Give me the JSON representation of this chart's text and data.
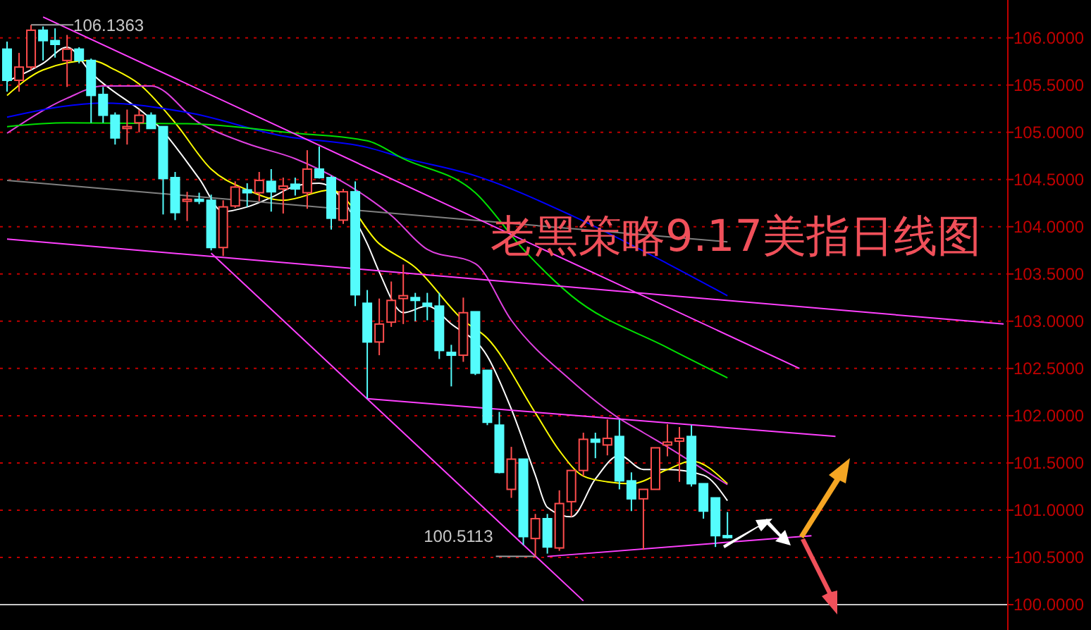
{
  "chart_data": {
    "type": "candlestick",
    "title": "老黑策略9.17美指日线图",
    "categories": [
      null,
      null,
      null,
      null,
      null,
      null,
      null,
      null,
      null,
      null,
      null,
      null,
      null,
      null,
      null,
      null,
      null,
      null,
      null,
      null,
      null,
      null,
      null,
      null,
      null,
      null,
      null,
      null,
      null,
      null,
      null,
      null,
      null,
      null,
      null,
      null,
      null,
      null,
      null,
      null,
      null,
      null,
      null,
      null,
      null,
      null,
      null,
      null,
      null,
      null,
      null,
      null,
      null,
      null,
      null,
      null,
      null,
      null,
      null,
      null,
      null,
      null,
      null,
      null,
      null,
      null,
      null,
      null,
      null,
      null,
      null,
      null,
      null,
      null,
      null,
      null,
      null,
      null,
      null,
      null,
      null,
      null,
      null,
      null
    ],
    "colors": [
      "#54fcfc",
      "#ff4d4d",
      "#ff4d4d",
      "#54fcfc",
      "#54fcfc",
      "#ff4d4d",
      "#54fcfc",
      "#54fcfc",
      "#54fcfc",
      "#54fcfc",
      "#ff4d4d",
      "#ff4d4d",
      "#54fcfc",
      "#54fcfc",
      "#54fcfc",
      "#ff4d4d",
      "#54fcfc",
      "#54fcfc",
      "#ff4d4d",
      "#ff4d4d",
      "#54fcfc",
      "#ff4d4d",
      "#54fcfc",
      "#ff4d4d",
      "#54fcfc",
      "#ff4d4d",
      "#54fcfc",
      "#54fcfc",
      "#ff4d4d",
      "#54fcfc",
      "#54fcfc",
      "#ff4d4d",
      "#ff4d4d",
      "#ff4d4d",
      "#54fcfc",
      "#54fcfc",
      "#54fcfc",
      "#54fcfc",
      "#ff4d4d",
      "#54fcfc",
      "#54fcfc",
      "#54fcfc",
      "#ff4d4d",
      "#54fcfc",
      "#ff4d4d",
      "#54fcfc",
      "#ff4d4d",
      "#ff4d4d",
      "#ff4d4d",
      "#54fcfc",
      "#ff4d4d",
      "#54fcfc",
      "#54fcfc",
      "#ff4d4d",
      "#ff4d4d",
      "#ff4d4d",
      "#ff4d4d",
      "#54fcfc",
      "#54fcfc",
      "#54fcfc",
      "#54fcfc",
      null,
      null,
      null,
      null,
      null,
      null,
      null,
      null,
      null,
      null,
      null,
      null,
      null,
      null,
      null,
      null,
      null,
      null,
      null,
      null,
      null,
      null,
      null
    ],
    "ohlc": [
      [
        105.88,
        105.96,
        105.43,
        105.55
      ],
      [
        105.55,
        105.84,
        105.43,
        105.69
      ],
      [
        105.69,
        106.1363,
        105.66,
        106.08
      ],
      [
        106.08,
        106.12,
        105.76,
        105.97
      ],
      [
        105.97,
        106.1,
        105.79,
        105.93
      ],
      [
        105.76,
        106.03,
        105.48,
        105.88
      ],
      [
        105.88,
        105.9,
        105.73,
        105.76
      ],
      [
        105.76,
        105.78,
        105.1,
        105.39
      ],
      [
        105.4,
        105.48,
        105.1,
        105.18
      ],
      [
        105.18,
        105.21,
        104.87,
        104.94
      ],
      [
        105.04,
        105.24,
        104.87,
        105.06
      ],
      [
        105.1,
        105.24,
        105.0,
        105.18
      ],
      [
        105.18,
        105.21,
        105.04,
        105.04
      ],
      [
        105.06,
        105.06,
        104.13,
        104.51
      ],
      [
        104.52,
        104.58,
        104.07,
        104.15
      ],
      [
        104.27,
        104.37,
        104.06,
        104.29
      ],
      [
        104.29,
        104.36,
        104.24,
        104.27
      ],
      [
        104.28,
        104.34,
        103.75,
        103.78
      ],
      [
        103.78,
        104.28,
        103.69,
        104.21
      ],
      [
        104.22,
        104.48,
        104.2,
        104.42
      ],
      [
        104.39,
        104.46,
        104.21,
        104.36
      ],
      [
        104.36,
        104.58,
        104.27,
        104.49
      ],
      [
        104.48,
        104.61,
        104.16,
        104.37
      ],
      [
        104.4,
        104.52,
        104.14,
        104.43
      ],
      [
        104.45,
        104.52,
        104.33,
        104.4
      ],
      [
        104.36,
        104.81,
        104.19,
        104.61
      ],
      [
        104.61,
        104.85,
        104.51,
        104.52
      ],
      [
        104.52,
        104.54,
        103.97,
        104.09
      ],
      [
        104.07,
        104.4,
        104.03,
        104.37
      ],
      [
        104.37,
        104.48,
        103.16,
        103.28
      ],
      [
        103.19,
        103.33,
        102.18,
        102.78
      ],
      [
        102.78,
        103.24,
        102.64,
        102.97
      ],
      [
        102.99,
        103.42,
        102.94,
        103.22
      ],
      [
        103.24,
        103.6,
        102.97,
        103.27
      ],
      [
        103.25,
        103.3,
        103.0,
        103.22
      ],
      [
        103.19,
        103.3,
        103.01,
        103.16
      ],
      [
        103.16,
        103.3,
        102.6,
        102.69
      ],
      [
        102.67,
        102.75,
        102.31,
        102.64
      ],
      [
        102.64,
        103.25,
        102.57,
        103.09
      ],
      [
        103.1,
        103.1,
        102.43,
        102.45
      ],
      [
        102.48,
        102.48,
        101.9,
        101.93
      ],
      [
        101.9,
        102.04,
        101.39,
        101.4
      ],
      [
        101.22,
        101.67,
        101.13,
        101.54
      ],
      [
        101.54,
        101.54,
        100.63,
        100.72
      ],
      [
        100.7,
        100.96,
        100.5113,
        100.91
      ],
      [
        100.91,
        100.96,
        100.54,
        100.61
      ],
      [
        100.6,
        101.21,
        100.57,
        101.07
      ],
      [
        101.09,
        101.42,
        100.93,
        101.42
      ],
      [
        101.42,
        101.82,
        101.36,
        101.75
      ],
      [
        101.75,
        101.82,
        101.55,
        101.72
      ],
      [
        101.69,
        101.96,
        101.58,
        101.76
      ],
      [
        101.78,
        101.96,
        101.22,
        101.31
      ],
      [
        101.31,
        101.4,
        100.99,
        101.12
      ],
      [
        101.12,
        101.22,
        100.58,
        101.22
      ],
      [
        101.22,
        101.66,
        101.22,
        101.66
      ],
      [
        101.69,
        101.91,
        101.57,
        101.72
      ],
      [
        101.73,
        101.88,
        101.3,
        101.76
      ],
      [
        101.78,
        101.9,
        101.25,
        101.28
      ],
      [
        101.28,
        101.28,
        100.91,
        100.99
      ],
      [
        101.13,
        101.13,
        100.61,
        100.73
      ],
      [
        100.73,
        100.98,
        100.7,
        100.71
      ],
      null,
      null,
      null,
      null,
      null,
      null,
      null,
      null,
      null,
      null,
      null,
      null,
      null,
      null,
      null,
      null,
      null,
      null,
      null,
      null,
      null,
      null,
      null
    ],
    "series": [
      {
        "type": "line",
        "color": "#ffffff",
        "values": [
          105.54,
          null,
          null,
          105.73,
          null,
          105.9,
          null,
          105.63,
          null,
          null,
          null,
          null,
          null,
          105.01,
          null,
          null,
          104.51,
          null,
          104.16,
          null,
          104.21,
          null,
          104.31,
          null,
          104.43,
          null,
          104.46,
          null,
          null,
          null,
          103.82,
          103.52,
          null,
          103.09,
          null,
          103.16,
          null,
          102.97,
          null,
          null,
          102.63,
          null,
          102.07,
          null,
          101.37,
          101.03,
          null,
          100.93,
          null,
          101.33,
          null,
          101.58,
          null,
          101.43,
          null,
          101.43,
          null,
          null,
          101.37,
          null,
          101.1,
          null,
          null,
          null,
          null,
          null,
          null,
          null,
          null,
          null,
          null,
          null,
          null,
          null,
          null,
          null,
          null,
          null,
          null,
          null,
          null,
          null,
          null,
          null
        ]
      },
      {
        "type": "line",
        "color": "#ffff00",
        "values": [
          105.39,
          null,
          null,
          105.66,
          null,
          null,
          null,
          105.76,
          null,
          105.66,
          null,
          105.51,
          null,
          null,
          105.1,
          null,
          null,
          104.61,
          null,
          null,
          104.39,
          null,
          null,
          104.28,
          null,
          null,
          null,
          104.39,
          null,
          null,
          null,
          103.82,
          null,
          null,
          103.57,
          null,
          null,
          null,
          103.01,
          null,
          102.82,
          null,
          null,
          null,
          102.03,
          null,
          101.63,
          null,
          101.36,
          null,
          101.3,
          null,
          101.28,
          null,
          null,
          101.43,
          null,
          101.52,
          null,
          null,
          101.28,
          null,
          null,
          null,
          null,
          null,
          null,
          null,
          null,
          null,
          null,
          null,
          null,
          null,
          null,
          null,
          null,
          null,
          null,
          null,
          null,
          null,
          null,
          null
        ]
      },
      {
        "type": "line",
        "color": "#e040e0",
        "values": [
          104.99,
          null,
          null,
          null,
          null,
          105.36,
          null,
          null,
          105.49,
          null,
          null,
          null,
          105.49,
          null,
          null,
          null,
          105.1,
          null,
          null,
          null,
          104.88,
          null,
          null,
          null,
          104.72,
          null,
          null,
          null,
          null,
          null,
          104.31,
          null,
          104.12,
          null,
          null,
          103.76,
          null,
          null,
          null,
          103.61,
          null,
          null,
          103.01,
          null,
          null,
          null,
          null,
          102.37,
          null,
          null,
          null,
          101.97,
          null,
          101.82,
          null,
          101.67,
          null,
          null,
          101.43,
          null,
          101.27,
          null,
          null,
          null,
          null,
          null,
          null,
          null,
          null,
          null,
          null,
          null,
          null,
          null,
          null,
          null,
          null,
          null,
          null,
          null,
          null,
          null,
          null,
          null
        ]
      },
      {
        "type": "line",
        "color": "#0000ff",
        "values": [
          105.16,
          null,
          null,
          null,
          null,
          105.28,
          null,
          null,
          105.31,
          null,
          null,
          null,
          null,
          null,
          null,
          105.21,
          null,
          null,
          null,
          null,
          null,
          null,
          null,
          104.96,
          null,
          null,
          null,
          null,
          null,
          null,
          104.84,
          null,
          null,
          104.73,
          null,
          null,
          null,
          null,
          null,
          104.54,
          null,
          null,
          null,
          null,
          null,
          null,
          null,
          104.12,
          null,
          null,
          null,
          null,
          null,
          null,
          null,
          103.61,
          null,
          null,
          null,
          null,
          103.27,
          null,
          null,
          null,
          null,
          null,
          null,
          null,
          null,
          null,
          null,
          null,
          null,
          null,
          null,
          null,
          null,
          null,
          null,
          null,
          null,
          null,
          null,
          null
        ]
      },
      {
        "type": "line",
        "color": "#00e000",
        "values": [
          105.06,
          null,
          null,
          null,
          null,
          105.1,
          null,
          null,
          null,
          null,
          null,
          null,
          null,
          null,
          null,
          105.09,
          null,
          null,
          null,
          null,
          null,
          null,
          null,
          null,
          104.99,
          null,
          null,
          null,
          null,
          null,
          104.91,
          null,
          null,
          104.72,
          null,
          null,
          null,
          null,
          null,
          104.36,
          null,
          null,
          null,
          103.76,
          null,
          null,
          null,
          103.27,
          null,
          null,
          null,
          null,
          null,
          null,
          null,
          102.72,
          null,
          null,
          null,
          null,
          102.4,
          null,
          null,
          null,
          null,
          null,
          null,
          null,
          null,
          null,
          null,
          null,
          null,
          null,
          null,
          null,
          null,
          null,
          null,
          null,
          null,
          null,
          null,
          null
        ]
      },
      {
        "type": "line",
        "color": "#808080",
        "values": [
          104.49,
          null,
          null,
          null,
          null,
          null,
          null,
          null,
          null,
          null,
          null,
          null,
          null,
          null,
          null,
          null,
          null,
          null,
          null,
          null,
          null,
          null,
          null,
          null,
          null,
          null,
          null,
          null,
          null,
          null,
          null,
          null,
          null,
          null,
          null,
          null,
          null,
          null,
          null,
          null,
          null,
          null,
          null,
          null,
          null,
          null,
          null,
          null,
          null,
          null,
          null,
          null,
          null,
          null,
          null,
          null,
          null,
          null,
          null,
          null,
          103.84,
          null,
          null,
          null,
          null,
          null,
          null,
          null,
          null,
          null,
          null,
          null,
          null,
          null,
          null,
          null,
          null,
          null,
          null,
          null,
          null,
          null,
          null,
          null
        ]
      },
      {
        "type": "line",
        "color": "#ff40ff",
        "values": [
          null,
          null,
          null,
          106.22,
          null,
          null,
          null,
          null,
          null,
          null,
          null,
          null,
          null,
          null,
          null,
          null,
          null,
          null,
          null,
          null,
          null,
          null,
          null,
          null,
          null,
          null,
          null,
          null,
          null,
          null,
          null,
          null,
          null,
          null,
          null,
          null,
          null,
          null,
          null,
          null,
          null,
          null,
          null,
          null,
          null,
          null,
          null,
          null,
          null,
          null,
          null,
          null,
          null,
          null,
          null,
          null,
          null,
          null,
          null,
          null,
          null,
          null,
          null,
          null,
          null,
          null,
          102.5,
          null,
          null,
          null,
          null,
          null,
          null,
          null,
          null,
          null,
          null,
          null,
          null,
          null,
          null,
          null,
          null,
          null
        ]
      },
      {
        "type": "line",
        "color": "#ff40ff",
        "values": [
          103.87,
          null,
          null,
          null,
          null,
          null,
          null,
          null,
          null,
          null,
          null,
          null,
          null,
          null,
          null,
          null,
          null,
          null,
          null,
          null,
          null,
          null,
          null,
          null,
          null,
          null,
          null,
          null,
          null,
          null,
          null,
          null,
          null,
          null,
          null,
          null,
          null,
          null,
          null,
          null,
          null,
          null,
          null,
          null,
          null,
          null,
          null,
          null,
          null,
          null,
          null,
          null,
          null,
          null,
          null,
          null,
          null,
          null,
          null,
          null,
          null,
          null,
          null,
          null,
          null,
          null,
          null,
          null,
          null,
          null,
          null,
          null,
          null,
          null,
          null,
          null,
          null,
          null,
          null,
          null,
          null,
          null,
          null,
          102.97
        ]
      },
      {
        "type": "line",
        "color": "#ff40ff",
        "values": [
          null,
          null,
          null,
          null,
          null,
          null,
          null,
          null,
          null,
          null,
          null,
          null,
          null,
          null,
          null,
          null,
          null,
          103.72,
          null,
          null,
          null,
          null,
          null,
          null,
          null,
          null,
          null,
          null,
          null,
          null,
          null,
          null,
          null,
          null,
          null,
          null,
          null,
          null,
          null,
          null,
          null,
          null,
          null,
          null,
          null,
          null,
          null,
          null,
          100.04,
          null,
          null,
          null,
          null,
          null,
          null,
          null,
          null,
          null,
          null,
          null,
          null,
          null,
          null,
          null,
          null,
          null,
          null,
          null,
          null,
          null,
          null,
          null,
          null,
          null,
          null,
          null,
          null,
          null,
          null,
          null,
          null,
          null,
          null,
          null
        ]
      },
      {
        "type": "line",
        "color": "#ff40ff",
        "values": [
          null,
          null,
          null,
          null,
          null,
          null,
          null,
          null,
          null,
          null,
          null,
          null,
          null,
          null,
          null,
          null,
          null,
          null,
          null,
          null,
          null,
          null,
          null,
          null,
          null,
          null,
          null,
          null,
          null,
          null,
          102.18,
          null,
          null,
          null,
          null,
          null,
          null,
          null,
          null,
          null,
          null,
          null,
          null,
          null,
          null,
          null,
          null,
          null,
          null,
          null,
          null,
          null,
          null,
          null,
          null,
          null,
          null,
          null,
          null,
          null,
          null,
          null,
          null,
          null,
          null,
          null,
          null,
          null,
          null,
          101.78,
          null,
          null,
          null,
          null,
          null,
          null,
          null,
          null,
          null,
          null,
          null,
          null,
          null,
          null
        ]
      },
      {
        "type": "line",
        "color": "#ff40ff",
        "values": [
          null,
          null,
          null,
          null,
          null,
          null,
          null,
          null,
          null,
          null,
          null,
          null,
          null,
          null,
          null,
          null,
          null,
          null,
          null,
          null,
          null,
          null,
          null,
          null,
          null,
          null,
          null,
          null,
          null,
          null,
          null,
          null,
          null,
          null,
          null,
          null,
          null,
          null,
          null,
          null,
          null,
          null,
          null,
          null,
          null,
          100.51,
          null,
          null,
          null,
          null,
          null,
          null,
          null,
          null,
          null,
          null,
          null,
          null,
          null,
          null,
          null,
          null,
          null,
          null,
          null,
          null,
          null,
          100.73,
          null,
          null,
          null,
          null,
          null,
          null,
          null,
          null,
          null,
          null,
          null,
          null,
          null,
          null,
          null,
          null
        ]
      }
    ],
    "ylim": [
      100.0,
      106.4
    ],
    "yticks": [
      {
        "value": 100.0,
        "label": "100.0000"
      },
      {
        "value": 100.5,
        "label": "100.5000"
      },
      {
        "value": 101.0,
        "label": "101.0000"
      },
      {
        "value": 101.5,
        "label": "101.5000"
      },
      {
        "value": 102.0,
        "label": "102.0000"
      },
      {
        "value": 102.5,
        "label": "102.5000"
      },
      {
        "value": 103.0,
        "label": "103.0000"
      },
      {
        "value": 103.5,
        "label": "103.5000"
      },
      {
        "value": 104.0,
        "label": "104.0000"
      },
      {
        "value": 104.5,
        "label": "104.5000"
      },
      {
        "value": 105.0,
        "label": "105.0000"
      },
      {
        "value": 105.5,
        "label": "105.5000"
      },
      {
        "value": 106.0,
        "label": "106.0000"
      }
    ],
    "grid": "y",
    "tick_labels": "y",
    "annotations": [
      "106.1363",
      "100.5113"
    ]
  }
}
